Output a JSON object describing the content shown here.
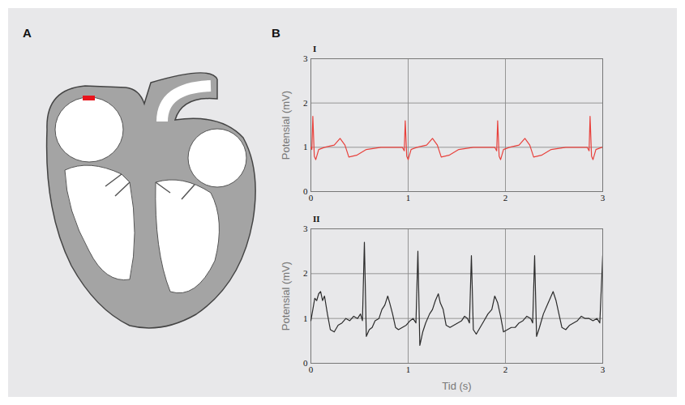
{
  "panel_labels": [
    "A",
    "B"
  ],
  "chart_data": [
    {
      "type": "line",
      "title": "I",
      "ylabel": "Potensial (mV)",
      "color": "#e8413c",
      "xlim": [
        0,
        3
      ],
      "ylim": [
        0,
        3
      ],
      "xticks": [
        0,
        1,
        2,
        3
      ],
      "yticks": [
        0,
        1,
        2,
        3
      ],
      "grid": true,
      "x": [
        0,
        0.01,
        0.02,
        0.035,
        0.05,
        0.08,
        0.14,
        0.24,
        0.3,
        0.35,
        0.39,
        0.47,
        0.57,
        0.72,
        0.92,
        0.94,
        0.96,
        0.97,
        0.985,
        1.0,
        1.03,
        1.09,
        1.19,
        1.25,
        1.3,
        1.34,
        1.42,
        1.52,
        1.67,
        1.87,
        1.89,
        1.91,
        1.92,
        1.935,
        1.95,
        1.98,
        2.04,
        2.14,
        2.2,
        2.25,
        2.29,
        2.37,
        2.47,
        2.62,
        2.82,
        2.84,
        2.86,
        2.87,
        2.885,
        2.9,
        2.93,
        2.99,
        3.0
      ],
      "values": [
        1.0,
        0.95,
        1.7,
        0.8,
        0.72,
        0.95,
        1.0,
        1.05,
        1.2,
        1.05,
        0.78,
        0.82,
        0.95,
        1.0,
        1.0,
        1.0,
        0.92,
        1.6,
        0.8,
        0.72,
        0.95,
        1.0,
        1.05,
        1.2,
        1.05,
        0.78,
        0.82,
        0.95,
        1.0,
        1.0,
        1.0,
        0.92,
        1.6,
        0.8,
        0.72,
        0.95,
        1.0,
        1.05,
        1.2,
        1.05,
        0.78,
        0.82,
        0.95,
        1.0,
        1.0,
        1.0,
        0.92,
        1.7,
        0.8,
        0.72,
        0.95,
        1.0,
        1.0
      ]
    },
    {
      "type": "line",
      "title": "II",
      "ylabel": "Potensial (mV)",
      "xlabel": "Tid (s)",
      "color": "#2b2b2b",
      "xlim": [
        0,
        3
      ],
      "ylim": [
        0,
        3
      ],
      "xticks": [
        0,
        1,
        2,
        3
      ],
      "yticks": [
        0,
        1,
        2,
        3
      ],
      "grid": true,
      "x": [
        0,
        0.02,
        0.04,
        0.06,
        0.08,
        0.1,
        0.12,
        0.14,
        0.17,
        0.2,
        0.24,
        0.28,
        0.32,
        0.36,
        0.4,
        0.44,
        0.48,
        0.51,
        0.53,
        0.55,
        0.57,
        0.6,
        0.63,
        0.66,
        0.7,
        0.73,
        0.76,
        0.79,
        0.81,
        0.84,
        0.87,
        0.9,
        0.94,
        0.98,
        1.02,
        1.05,
        1.08,
        1.1,
        1.12,
        1.15,
        1.18,
        1.22,
        1.25,
        1.28,
        1.31,
        1.33,
        1.36,
        1.39,
        1.43,
        1.47,
        1.51,
        1.55,
        1.58,
        1.61,
        1.63,
        1.65,
        1.67,
        1.7,
        1.74,
        1.78,
        1.82,
        1.86,
        1.89,
        1.92,
        1.95,
        1.98,
        2.02,
        2.06,
        2.1,
        2.14,
        2.18,
        2.22,
        2.26,
        2.28,
        2.3,
        2.32,
        2.35,
        2.39,
        2.43,
        2.46,
        2.49,
        2.52,
        2.55,
        2.58,
        2.62,
        2.66,
        2.7,
        2.74,
        2.78,
        2.82,
        2.86,
        2.9,
        2.94,
        2.97,
        3.0
      ],
      "values": [
        0.95,
        1.2,
        1.45,
        1.4,
        1.55,
        1.6,
        1.4,
        1.5,
        1.1,
        0.75,
        0.7,
        0.85,
        0.9,
        1.0,
        0.95,
        1.05,
        1.0,
        1.1,
        0.95,
        2.7,
        0.6,
        0.75,
        0.8,
        0.95,
        1.0,
        1.2,
        1.3,
        1.5,
        1.35,
        1.1,
        0.8,
        0.75,
        0.8,
        0.85,
        0.95,
        1.0,
        0.9,
        2.5,
        0.4,
        0.7,
        0.9,
        1.1,
        1.2,
        1.4,
        1.55,
        1.35,
        1.2,
        0.85,
        0.8,
        0.85,
        0.9,
        0.95,
        1.05,
        1.0,
        0.9,
        2.4,
        0.75,
        0.65,
        0.8,
        0.95,
        1.1,
        1.2,
        1.5,
        1.35,
        1.05,
        0.7,
        0.75,
        0.8,
        0.8,
        0.9,
        0.95,
        1.05,
        1.0,
        0.9,
        2.4,
        0.6,
        0.8,
        1.1,
        1.3,
        1.45,
        1.6,
        1.4,
        1.1,
        0.8,
        0.75,
        0.85,
        0.9,
        0.95,
        1.05,
        1.0,
        1.0,
        0.95,
        1.0,
        0.9,
        2.4
      ]
    }
  ]
}
